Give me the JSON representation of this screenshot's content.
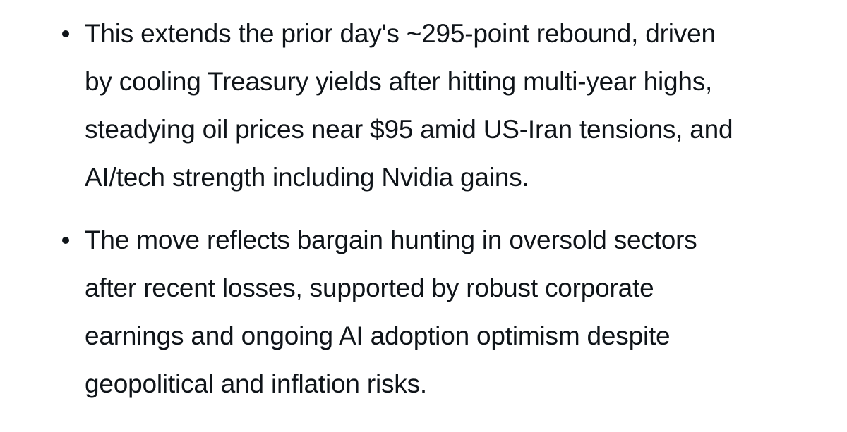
{
  "list": {
    "items": [
      {
        "lines": [
          "This extends the prior day's ~295-point rebound, driven",
          "by cooling Treasury yields after hitting multi-year highs,",
          "steadying oil prices near $95 amid US-Iran tensions, and",
          "AI/tech strength including Nvidia gains."
        ]
      },
      {
        "lines": [
          "The move reflects bargain hunting in oversold sectors",
          "after recent losses, supported by robust corporate",
          "earnings and ongoing AI adoption optimism despite",
          "geopolitical and inflation risks."
        ]
      }
    ]
  }
}
